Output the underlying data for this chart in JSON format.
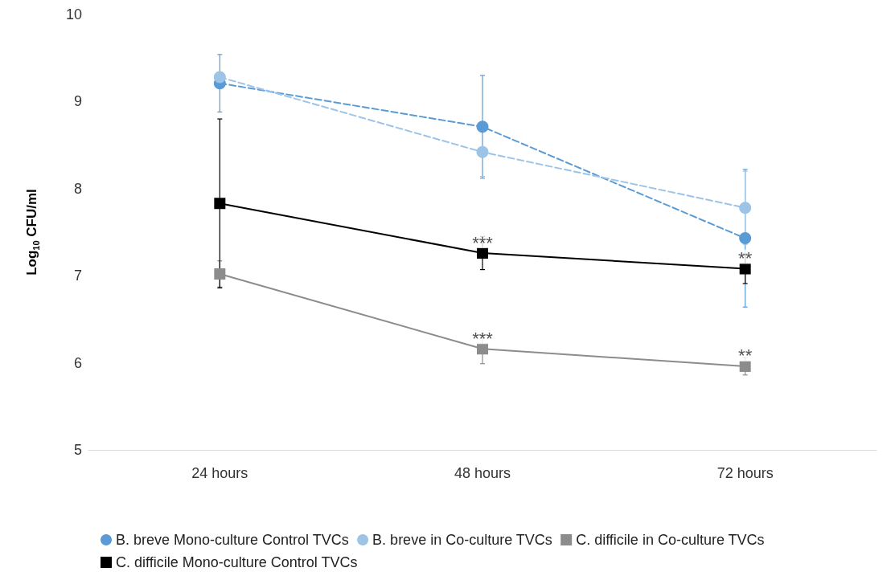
{
  "chart_data": {
    "type": "line",
    "ylabel": "Log$_{10}$ CFU/ml",
    "categories": [
      "24 hours",
      "48 hours",
      "72 hours"
    ],
    "series": [
      {
        "name": "B. breve Mono-culture Control TVCs",
        "color": "#5b9bd5",
        "values": [
          9.21,
          8.71,
          7.43
        ],
        "errors": [
          0.33,
          0.59,
          0.79
        ],
        "marker": "circle",
        "line_style": "dashed"
      },
      {
        "name": "B. breve in Co-culture TVCs",
        "color": "#9dc3e6",
        "values": [
          9.28,
          8.42,
          7.78
        ],
        "errors": [
          null,
          0.28,
          0.42
        ],
        "marker": "circle",
        "line_style": "dashed"
      },
      {
        "name": "C. difficile in Co-culture TVCs",
        "color": "#8c8c8c",
        "values": [
          7.02,
          6.16,
          5.96
        ],
        "errors": [
          0.15,
          0.17,
          0.1
        ],
        "marker": "square",
        "line_style": "solid"
      },
      {
        "name": "C. difficile Mono-culture Control TVCs",
        "color": "#000000",
        "values": [
          7.83,
          7.26,
          7.08
        ],
        "errors": [
          0.97,
          0.19,
          0.17
        ],
        "marker": "square",
        "line_style": "solid"
      }
    ],
    "annotations": [
      {
        "text": "***",
        "x": "48 hours",
        "y": 7.26
      },
      {
        "text": "***",
        "x": "48 hours",
        "y": 6.16
      },
      {
        "text": "**",
        "x": "72 hours",
        "y": 7.08
      },
      {
        "text": "**",
        "x": "72 hours",
        "y": 5.96
      }
    ],
    "ylim": [
      5,
      10
    ],
    "yticks": [
      5,
      6,
      7,
      8,
      9,
      10
    ],
    "grid": false,
    "legend": "bottom"
  }
}
